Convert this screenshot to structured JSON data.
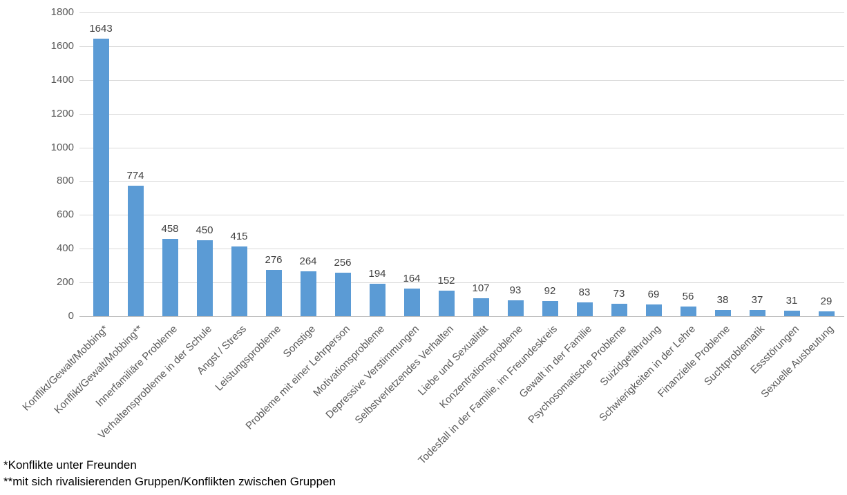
{
  "chart_data": {
    "type": "bar",
    "title": "",
    "xlabel": "",
    "ylabel": "",
    "categories": [
      "Konflikt/Gewalt/Mobbing*",
      "Konflikt/Gewalt/Mobbing**",
      "Innerfamiliäre Probleme",
      "Verhaltensprobleme in der Schule",
      "Angst / Stress",
      "Leistungsprobleme",
      "Sonstige",
      "Probleme mit einer Lehrperson",
      "Motivationsprobleme",
      "Depressive Verstimmungen",
      "Selbstverletzendes Verhalten",
      "Liebe und Sexualität",
      "Konzentrationsprobleme",
      "Todesfall in der Familie, im Freundeskreis",
      "Gewalt in der Familie",
      "Psychosomatische Probleme",
      "Suizidgefährdung",
      "Schwierigkeiten in der Lehre",
      "Finanzielle Probleme",
      "Suchtproblematik",
      "Essstörungen",
      "Sexuelle Ausbeutung"
    ],
    "values": [
      1643,
      774,
      458,
      450,
      415,
      276,
      264,
      256,
      194,
      164,
      152,
      107,
      93,
      92,
      83,
      73,
      69,
      56,
      38,
      37,
      31,
      29
    ],
    "ylim": [
      0,
      1800
    ],
    "ytick_step": 200,
    "grid": true,
    "legend": false,
    "data_labels": true,
    "bar_color": "#5b9bd5",
    "gridline_color": "#d9d9d9",
    "axis_line_color": "#bfbfbf",
    "tick_label_color": "#595959",
    "data_label_color": "#404040"
  },
  "footnotes": {
    "line1": "*Konflikte unter Freunden",
    "line2": "**mit sich rivalisierenden Gruppen/Konflikten zwischen Gruppen"
  }
}
